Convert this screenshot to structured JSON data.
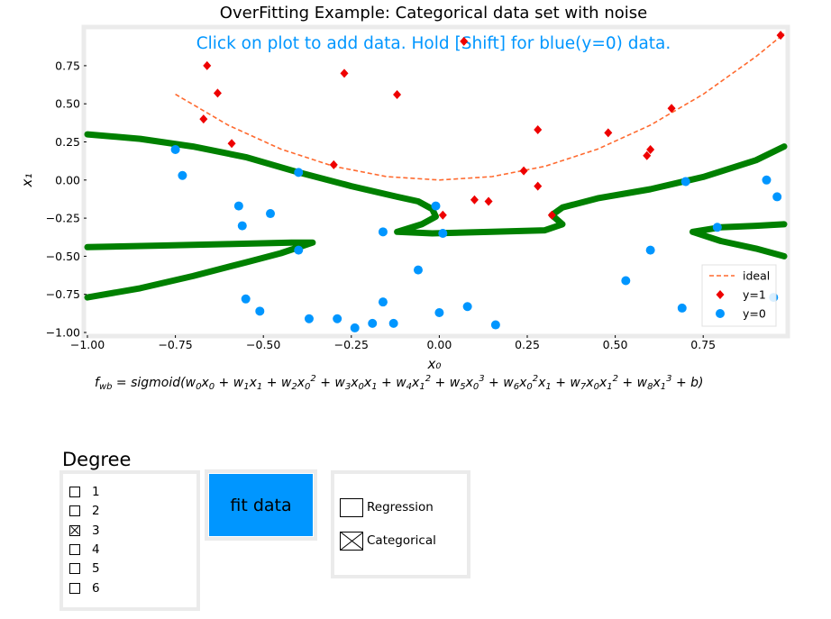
{
  "chart_data": {
    "type": "scatter",
    "title": "OverFitting Example: Categorical data set with noise",
    "instruction": "Click on plot to add data. Hold [Shift] for blue(y=0) data.",
    "xlabel": "x₀",
    "ylabel": "x₁",
    "xlim": [
      -1.0,
      0.98
    ],
    "ylim": [
      -1.0,
      0.98
    ],
    "xticks": [
      -1.0,
      -0.75,
      -0.5,
      -0.25,
      0.0,
      0.25,
      0.5,
      0.75
    ],
    "xtick_labels": [
      "−1.00",
      "−0.75",
      "−0.50",
      "−0.25",
      "0.00",
      "0.25",
      "0.50",
      "0.75"
    ],
    "yticks": [
      0.75,
      0.5,
      0.25,
      0.0,
      -0.25,
      -0.5,
      -0.75,
      -1.0
    ],
    "ytick_labels": [
      "0.75",
      "0.50",
      "0.25",
      "0.00",
      "−0.25",
      "−0.50",
      "−0.75",
      "−1.00"
    ],
    "grid": false,
    "legend_position": "lower-right",
    "legend": [
      {
        "label": "ideal",
        "kind": "dashed-line",
        "color": "#ff6a2f"
      },
      {
        "label": "y=1",
        "kind": "diamond",
        "color": "#ee0000"
      },
      {
        "label": "y=0",
        "kind": "circle",
        "color": "#0096ff"
      }
    ],
    "series": [
      {
        "name": "y=1",
        "marker": "diamond",
        "color": "#ee0000",
        "points": [
          [
            -0.66,
            0.75
          ],
          [
            -0.63,
            0.57
          ],
          [
            -0.67,
            0.4
          ],
          [
            -0.59,
            0.24
          ],
          [
            -0.27,
            0.7
          ],
          [
            -0.12,
            0.56
          ],
          [
            -0.3,
            0.1
          ],
          [
            0.07,
            0.91
          ],
          [
            0.28,
            0.33
          ],
          [
            0.48,
            0.31
          ],
          [
            0.66,
            0.47
          ],
          [
            0.6,
            0.2
          ],
          [
            0.59,
            0.16
          ],
          [
            0.24,
            0.06
          ],
          [
            0.28,
            -0.04
          ],
          [
            0.1,
            -0.13
          ],
          [
            0.14,
            -0.14
          ],
          [
            0.01,
            -0.23
          ],
          [
            0.32,
            -0.23
          ],
          [
            0.97,
            0.95
          ]
        ]
      },
      {
        "name": "y=0",
        "marker": "circle",
        "color": "#0096ff",
        "points": [
          [
            -0.75,
            0.2
          ],
          [
            -0.73,
            0.03
          ],
          [
            -0.57,
            -0.17
          ],
          [
            -0.56,
            -0.3
          ],
          [
            -0.48,
            -0.22
          ],
          [
            -0.4,
            0.05
          ],
          [
            -0.4,
            -0.46
          ],
          [
            -0.55,
            -0.78
          ],
          [
            -0.51,
            -0.86
          ],
          [
            -0.37,
            -0.91
          ],
          [
            -0.29,
            -0.91
          ],
          [
            -0.24,
            -0.97
          ],
          [
            -0.19,
            -0.94
          ],
          [
            -0.16,
            -0.8
          ],
          [
            -0.13,
            -0.94
          ],
          [
            -0.16,
            -0.34
          ],
          [
            -0.06,
            -0.59
          ],
          [
            -0.01,
            -0.17
          ],
          [
            0.01,
            -0.35
          ],
          [
            0.0,
            -0.87
          ],
          [
            0.08,
            -0.83
          ],
          [
            0.16,
            -0.95
          ],
          [
            0.53,
            -0.66
          ],
          [
            0.6,
            -0.46
          ],
          [
            0.7,
            -0.01
          ],
          [
            0.69,
            -0.84
          ],
          [
            0.79,
            -0.31
          ],
          [
            0.93,
            0.0
          ],
          [
            0.96,
            -0.11
          ],
          [
            0.95,
            -0.77
          ]
        ]
      },
      {
        "name": "ideal",
        "kind": "line",
        "color": "#ff6a2f",
        "points": [
          [
            -0.75,
            0.5625
          ],
          [
            -0.6,
            0.36
          ],
          [
            -0.45,
            0.2025
          ],
          [
            -0.3,
            0.09
          ],
          [
            -0.15,
            0.0225
          ],
          [
            0.0,
            0.0
          ],
          [
            0.15,
            0.0225
          ],
          [
            0.3,
            0.09
          ],
          [
            0.45,
            0.2025
          ],
          [
            0.6,
            0.36
          ],
          [
            0.75,
            0.5625
          ],
          [
            0.9,
            0.81
          ],
          [
            0.98,
            0.9604
          ]
        ]
      },
      {
        "kind": "boundary",
        "color": "#008000",
        "polylines": [
          [
            [
              -1.0,
              0.3
            ],
            [
              -0.85,
              0.27
            ],
            [
              -0.7,
              0.22
            ],
            [
              -0.55,
              0.15
            ],
            [
              -0.4,
              0.05
            ],
            [
              -0.25,
              -0.04
            ],
            [
              -0.12,
              -0.11
            ],
            [
              -0.06,
              -0.14
            ],
            [
              -0.02,
              -0.19
            ],
            [
              -0.01,
              -0.24
            ],
            [
              -0.05,
              -0.29
            ],
            [
              -0.12,
              -0.34
            ],
            [
              -0.02,
              -0.35
            ],
            [
              0.15,
              -0.34
            ],
            [
              0.3,
              -0.33
            ],
            [
              0.35,
              -0.29
            ],
            [
              0.32,
              -0.23
            ],
            [
              0.35,
              -0.18
            ],
            [
              0.45,
              -0.12
            ],
            [
              0.6,
              -0.06
            ],
            [
              0.75,
              0.02
            ],
            [
              0.9,
              0.13
            ],
            [
              0.98,
              0.22
            ]
          ],
          [
            [
              -1.0,
              -0.44
            ],
            [
              -0.8,
              -0.43
            ],
            [
              -0.6,
              -0.42
            ],
            [
              -0.42,
              -0.41
            ],
            [
              -0.36,
              -0.41
            ],
            [
              -0.45,
              -0.48
            ],
            [
              -0.55,
              -0.54
            ],
            [
              -0.7,
              -0.63
            ],
            [
              -0.85,
              -0.71
            ],
            [
              -1.0,
              -0.77
            ]
          ],
          [
            [
              0.98,
              -0.29
            ],
            [
              0.9,
              -0.3
            ],
            [
              0.8,
              -0.31
            ],
            [
              0.72,
              -0.34
            ],
            [
              0.8,
              -0.4
            ],
            [
              0.9,
              -0.45
            ],
            [
              0.98,
              -0.5
            ]
          ]
        ]
      }
    ]
  },
  "formula": "f_wb = sigmoid(w0x0 + w1x1 + w2x0^2 + w3x0x1 + w4x1^2 + w5x0^3 + w6x0^2x1 + w7x0x1^2 + w8x1^3 + b)",
  "degree_panel": {
    "title": "Degree",
    "options": [
      {
        "label": "1",
        "checked": false
      },
      {
        "label": "2",
        "checked": false
      },
      {
        "label": "3",
        "checked": true
      },
      {
        "label": "4",
        "checked": false
      },
      {
        "label": "5",
        "checked": false
      },
      {
        "label": "6",
        "checked": false
      }
    ]
  },
  "fit_button": {
    "label": "fit data",
    "color": "#0096ff"
  },
  "mode_panel": {
    "options": [
      {
        "label": "Regression",
        "checked": false
      },
      {
        "label": "Categorical",
        "checked": true
      }
    ]
  }
}
